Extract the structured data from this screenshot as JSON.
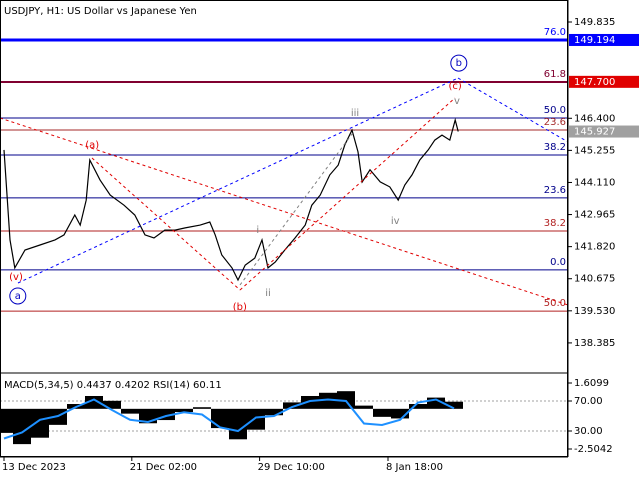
{
  "chart_data": {
    "type": "line",
    "title": "USDJPY, H1:  US Dollar vs Japanese Yen",
    "color": "#000000",
    "x": [
      0,
      1,
      1.8,
      3.5,
      6,
      8.5,
      10,
      11.8,
      12.7,
      13.7,
      14.3,
      16,
      17.7,
      20,
      21.8,
      23.5,
      25,
      26.8,
      28.5,
      30.2,
      32.7,
      34.3,
      35.2,
      36.3,
      38,
      39,
      40.2,
      41.8,
      43,
      44,
      45.2,
      46.8,
      48.5,
      50.2,
      51.3,
      52.7,
      54.3,
      55.7,
      56.8,
      58,
      59,
      59.7,
      61,
      62.7,
      64.3,
      65.7,
      66.8,
      68,
      69.3,
      70.7,
      71.8,
      73,
      74.3,
      75.2,
      75.7
    ],
    "values": [
      145.27,
      142.06,
      141.06,
      141.7,
      141.88,
      142.06,
      142.24,
      142.95,
      142.59,
      143.48,
      144.91,
      144.2,
      143.66,
      143.3,
      142.95,
      142.24,
      142.13,
      142.41,
      142.41,
      142.49,
      142.59,
      142.7,
      142.24,
      141.52,
      141.06,
      140.63,
      141.16,
      141.41,
      142.06,
      141.06,
      141.27,
      141.7,
      142.13,
      142.59,
      143.3,
      143.66,
      144.38,
      144.73,
      145.45,
      145.98,
      145.2,
      144.13,
      144.56,
      144.13,
      143.95,
      143.48,
      144.02,
      144.38,
      144.91,
      145.27,
      145.62,
      145.8,
      145.62,
      146.34,
      145.927
    ],
    "xlim": [
      0,
      94
    ],
    "xticks": [
      {
        "value": 0,
        "label": "13 Dec 2023"
      },
      {
        "value": 21.3,
        "label": "21 Dec 02:00"
      },
      {
        "value": 42.6,
        "label": "29 Dec 10:00"
      },
      {
        "value": 64,
        "label": "8 Jan 18:00"
      }
    ],
    "ylim": [
      137.347,
      150.549
    ],
    "yticks": [
      149.835,
      {
        "value": 146.4,
        "label": "146.400"
      },
      145.255,
      {
        "value": 144.11,
        "label": "144.110"
      },
      142.965,
      {
        "value": 141.82,
        "label": "141.820"
      },
      140.675,
      {
        "value": 139.53,
        "label": "139.530"
      },
      138.385
    ],
    "price_labels": [
      {
        "value": 149.194,
        "color": "#0000ff"
      },
      {
        "value": 147.7,
        "label": "147.700",
        "color": "#e00000"
      },
      {
        "value": 145.927,
        "color": "#a0a0a0"
      }
    ],
    "levels": [
      {
        "label": "76.0",
        "value": 149.194,
        "color": "#0000ff",
        "width": 3
      },
      {
        "label": "61.8",
        "value": 147.694,
        "color": "#800030",
        "width": 2
      },
      {
        "label": "50.0",
        "value": 146.41,
        "color": "#00008b",
        "width": 1
      },
      {
        "label": "23.6",
        "value": 145.98,
        "color": "#a52a2a",
        "width": 1
      },
      {
        "label": "38.2",
        "value": 145.09,
        "color": "#00008b",
        "width": 1
      },
      {
        "label": "23.6",
        "value": 143.56,
        "color": "#00008b",
        "width": 1
      },
      {
        "label": "38.2",
        "value": 142.38,
        "color": "#b22222",
        "width": 1
      },
      {
        "label": "0.0",
        "value": 140.99,
        "color": "#00008b",
        "width": 1
      },
      {
        "label": "50.0",
        "value": 139.52,
        "color": "#b22222",
        "width": 1
      }
    ],
    "waves": [
      {
        "text": "(v)",
        "x": 2,
        "y": 140.74,
        "color": "#e00000"
      },
      {
        "text": "a",
        "x": 2.3,
        "y": 140.06,
        "color": "#0000c0",
        "circle": true
      },
      {
        "text": "(a)",
        "x": 14.7,
        "y": 145.45,
        "color": "#e00000"
      },
      {
        "text": "(b)",
        "x": 39.3,
        "y": 139.67,
        "color": "#e00000"
      },
      {
        "text": "i",
        "x": 42.3,
        "y": 142.41,
        "color": "#808080"
      },
      {
        "text": "ii",
        "x": 44,
        "y": 140.17,
        "color": "#808080"
      },
      {
        "text": "iii",
        "x": 58.5,
        "y": 146.59,
        "color": "#808080"
      },
      {
        "text": "iv",
        "x": 65.2,
        "y": 142.73,
        "color": "#808080"
      },
      {
        "text": "v",
        "x": 75.5,
        "y": 147.02,
        "color": "#808080"
      },
      {
        "text": "(c)",
        "x": 75.2,
        "y": 147.55,
        "color": "#e00000"
      },
      {
        "text": "b",
        "x": 75.8,
        "y": 148.37,
        "color": "#0000c0",
        "circle": true
      }
    ],
    "indicator": {
      "title": "MACD(5,34,5) 0.4437 0.4202 RSI(14) 60.11",
      "x": [
        0,
        3,
        6,
        9,
        12,
        15,
        18,
        21,
        24,
        27,
        30,
        33,
        36,
        39,
        42,
        45,
        48,
        51,
        54,
        57,
        60,
        63,
        66,
        69,
        72,
        75
      ],
      "macd": [
        -1.5,
        -2.2,
        -1.8,
        -1.0,
        0.3,
        0.8,
        0.5,
        -0.3,
        -0.9,
        -0.7,
        -0.2,
        0.1,
        -1.2,
        -1.9,
        -1.3,
        -0.4,
        0.4,
        0.8,
        1.0,
        1.1,
        0.2,
        -0.5,
        -0.6,
        0.3,
        0.7,
        0.4437
      ],
      "rsi": [
        20,
        28,
        45,
        50,
        62,
        72,
        58,
        45,
        42,
        50,
        55,
        52,
        35,
        30,
        48,
        50,
        62,
        70,
        72,
        70,
        40,
        38,
        45,
        68,
        72,
        60.11
      ],
      "macd_color": "#000000",
      "rsi_color": "#1e90ff",
      "macd_ylim": [
        -2.8783,
        2.1087
      ],
      "macd_yticks": [
        1.6099,
        -2.5042
      ],
      "rsi_ylim": [
        -2,
        104.67
      ],
      "rsi_yticks": [
        {
          "value": 70,
          "label": "70.00"
        },
        {
          "value": 30,
          "label": "30.00"
        }
      ]
    }
  }
}
